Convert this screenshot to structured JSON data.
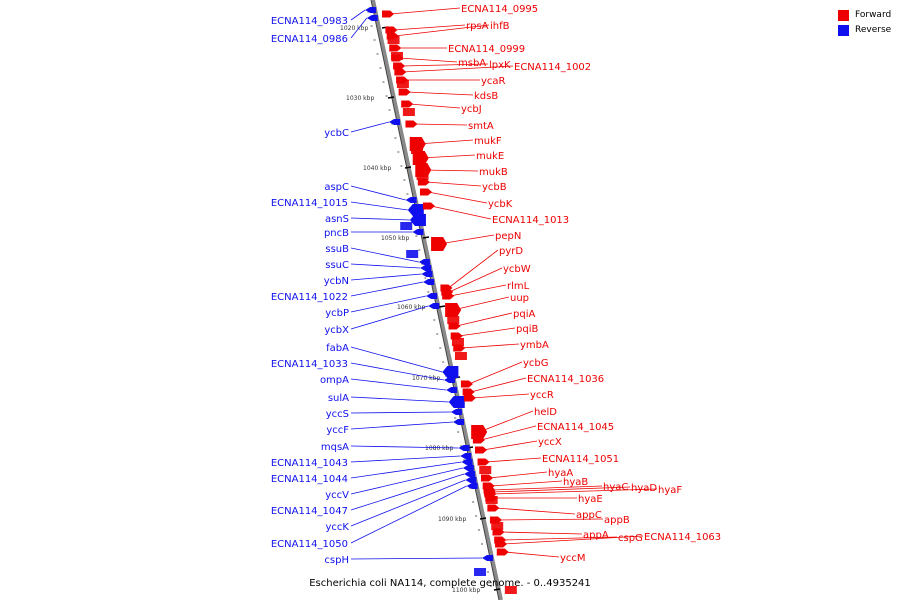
{
  "caption": "Escherichia coli NA114, complete genome. - 0..4935241",
  "legend": {
    "forward": {
      "label": "Forward",
      "color": "#ee0000"
    },
    "reverse": {
      "label": "Reverse",
      "color": "#1010ee"
    }
  },
  "scale_marks": [
    "1020 kbp",
    "1030 kbp",
    "1040 kbp",
    "1050 kbp",
    "1060 kbp",
    "1070 kbp",
    "1080 kbp",
    "1090 kbp",
    "1100 kbp"
  ],
  "reverse_genes": [
    "ECNA114_0983",
    "ECNA114_0986",
    "ycbC",
    "aspC",
    "ECNA114_1015",
    "asnS",
    "pncB",
    "ssuB",
    "ssuC",
    "ycbN",
    "ECNA114_1022",
    "ycbP",
    "ycbX",
    "fabA",
    "ECNA114_1033",
    "ompA",
    "sulA",
    "yccS",
    "yccF",
    "mqsA",
    "ECNA114_1043",
    "ECNA114_1044",
    "yccV",
    "ECNA114_1047",
    "yccK",
    "ECNA114_1050",
    "cspH"
  ],
  "forward_genes": [
    "ECNA114_0995",
    "rpsA",
    "ihfB",
    "ECNA114_0999",
    "msbA",
    "lpxK",
    "ECNA114_1002",
    "ycaR",
    "kdsB",
    "ycbJ",
    "smtA",
    "mukF",
    "mukE",
    "mukB",
    "ycbB",
    "ycbK",
    "ECNA114_1013",
    "pepN",
    "pyrD",
    "ycbW",
    "rlmL",
    "uup",
    "pqiA",
    "pqiB",
    "ymbA",
    "ycbG",
    "ECNA114_1036",
    "yccR",
    "helD",
    "ECNA114_1045",
    "yccX",
    "ECNA114_1051",
    "hyaA",
    "hyaB",
    "hyaC",
    "hyaD",
    "hyaF",
    "hyaE",
    "appC",
    "appB",
    "appA",
    "cspG",
    "ECNA114_1063",
    "yccM"
  ]
}
